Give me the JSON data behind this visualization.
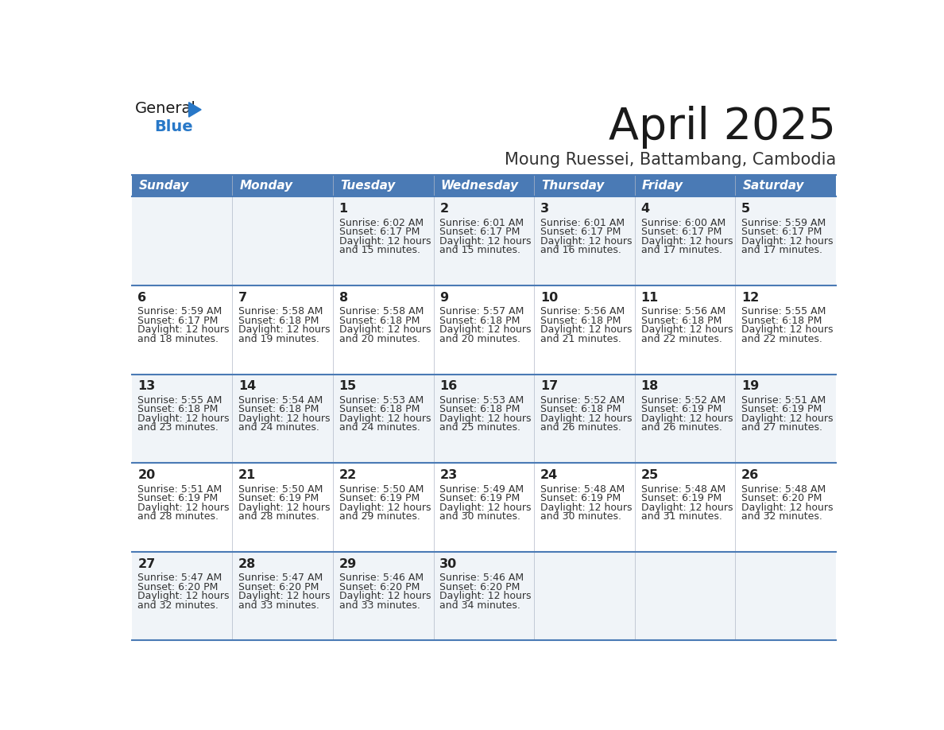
{
  "title": "April 2025",
  "subtitle": "Moung Ruessei, Battambang, Cambodia",
  "days_of_week": [
    "Sunday",
    "Monday",
    "Tuesday",
    "Wednesday",
    "Thursday",
    "Friday",
    "Saturday"
  ],
  "header_bg": "#4a7ab5",
  "header_text": "#ffffff",
  "cell_bg_even": "#f0f4f8",
  "cell_bg_odd": "#ffffff",
  "row_line_color": "#4a7ab5",
  "title_color": "#1a1a1a",
  "subtitle_color": "#333333",
  "day_number_color": "#222222",
  "cell_text_color": "#333333",
  "logo_general_color": "#1a1a1a",
  "logo_blue_color": "#2878c8",
  "calendar_data": [
    {
      "day": 1,
      "col": 2,
      "row": 0,
      "sunrise": "6:02 AM",
      "sunset": "6:17 PM",
      "daylight_h": "12 hours",
      "daylight_m": "and 15 minutes."
    },
    {
      "day": 2,
      "col": 3,
      "row": 0,
      "sunrise": "6:01 AM",
      "sunset": "6:17 PM",
      "daylight_h": "12 hours",
      "daylight_m": "and 15 minutes."
    },
    {
      "day": 3,
      "col": 4,
      "row": 0,
      "sunrise": "6:01 AM",
      "sunset": "6:17 PM",
      "daylight_h": "12 hours",
      "daylight_m": "and 16 minutes."
    },
    {
      "day": 4,
      "col": 5,
      "row": 0,
      "sunrise": "6:00 AM",
      "sunset": "6:17 PM",
      "daylight_h": "12 hours",
      "daylight_m": "and 17 minutes."
    },
    {
      "day": 5,
      "col": 6,
      "row": 0,
      "sunrise": "5:59 AM",
      "sunset": "6:17 PM",
      "daylight_h": "12 hours",
      "daylight_m": "and 17 minutes."
    },
    {
      "day": 6,
      "col": 0,
      "row": 1,
      "sunrise": "5:59 AM",
      "sunset": "6:17 PM",
      "daylight_h": "12 hours",
      "daylight_m": "and 18 minutes."
    },
    {
      "day": 7,
      "col": 1,
      "row": 1,
      "sunrise": "5:58 AM",
      "sunset": "6:18 PM",
      "daylight_h": "12 hours",
      "daylight_m": "and 19 minutes."
    },
    {
      "day": 8,
      "col": 2,
      "row": 1,
      "sunrise": "5:58 AM",
      "sunset": "6:18 PM",
      "daylight_h": "12 hours",
      "daylight_m": "and 20 minutes."
    },
    {
      "day": 9,
      "col": 3,
      "row": 1,
      "sunrise": "5:57 AM",
      "sunset": "6:18 PM",
      "daylight_h": "12 hours",
      "daylight_m": "and 20 minutes."
    },
    {
      "day": 10,
      "col": 4,
      "row": 1,
      "sunrise": "5:56 AM",
      "sunset": "6:18 PM",
      "daylight_h": "12 hours",
      "daylight_m": "and 21 minutes."
    },
    {
      "day": 11,
      "col": 5,
      "row": 1,
      "sunrise": "5:56 AM",
      "sunset": "6:18 PM",
      "daylight_h": "12 hours",
      "daylight_m": "and 22 minutes."
    },
    {
      "day": 12,
      "col": 6,
      "row": 1,
      "sunrise": "5:55 AM",
      "sunset": "6:18 PM",
      "daylight_h": "12 hours",
      "daylight_m": "and 22 minutes."
    },
    {
      "day": 13,
      "col": 0,
      "row": 2,
      "sunrise": "5:55 AM",
      "sunset": "6:18 PM",
      "daylight_h": "12 hours",
      "daylight_m": "and 23 minutes."
    },
    {
      "day": 14,
      "col": 1,
      "row": 2,
      "sunrise": "5:54 AM",
      "sunset": "6:18 PM",
      "daylight_h": "12 hours",
      "daylight_m": "and 24 minutes."
    },
    {
      "day": 15,
      "col": 2,
      "row": 2,
      "sunrise": "5:53 AM",
      "sunset": "6:18 PM",
      "daylight_h": "12 hours",
      "daylight_m": "and 24 minutes."
    },
    {
      "day": 16,
      "col": 3,
      "row": 2,
      "sunrise": "5:53 AM",
      "sunset": "6:18 PM",
      "daylight_h": "12 hours",
      "daylight_m": "and 25 minutes."
    },
    {
      "day": 17,
      "col": 4,
      "row": 2,
      "sunrise": "5:52 AM",
      "sunset": "6:18 PM",
      "daylight_h": "12 hours",
      "daylight_m": "and 26 minutes."
    },
    {
      "day": 18,
      "col": 5,
      "row": 2,
      "sunrise": "5:52 AM",
      "sunset": "6:19 PM",
      "daylight_h": "12 hours",
      "daylight_m": "and 26 minutes."
    },
    {
      "day": 19,
      "col": 6,
      "row": 2,
      "sunrise": "5:51 AM",
      "sunset": "6:19 PM",
      "daylight_h": "12 hours",
      "daylight_m": "and 27 minutes."
    },
    {
      "day": 20,
      "col": 0,
      "row": 3,
      "sunrise": "5:51 AM",
      "sunset": "6:19 PM",
      "daylight_h": "12 hours",
      "daylight_m": "and 28 minutes."
    },
    {
      "day": 21,
      "col": 1,
      "row": 3,
      "sunrise": "5:50 AM",
      "sunset": "6:19 PM",
      "daylight_h": "12 hours",
      "daylight_m": "and 28 minutes."
    },
    {
      "day": 22,
      "col": 2,
      "row": 3,
      "sunrise": "5:50 AM",
      "sunset": "6:19 PM",
      "daylight_h": "12 hours",
      "daylight_m": "and 29 minutes."
    },
    {
      "day": 23,
      "col": 3,
      "row": 3,
      "sunrise": "5:49 AM",
      "sunset": "6:19 PM",
      "daylight_h": "12 hours",
      "daylight_m": "and 30 minutes."
    },
    {
      "day": 24,
      "col": 4,
      "row": 3,
      "sunrise": "5:48 AM",
      "sunset": "6:19 PM",
      "daylight_h": "12 hours",
      "daylight_m": "and 30 minutes."
    },
    {
      "day": 25,
      "col": 5,
      "row": 3,
      "sunrise": "5:48 AM",
      "sunset": "6:19 PM",
      "daylight_h": "12 hours",
      "daylight_m": "and 31 minutes."
    },
    {
      "day": 26,
      "col": 6,
      "row": 3,
      "sunrise": "5:48 AM",
      "sunset": "6:20 PM",
      "daylight_h": "12 hours",
      "daylight_m": "and 32 minutes."
    },
    {
      "day": 27,
      "col": 0,
      "row": 4,
      "sunrise": "5:47 AM",
      "sunset": "6:20 PM",
      "daylight_h": "12 hours",
      "daylight_m": "and 32 minutes."
    },
    {
      "day": 28,
      "col": 1,
      "row": 4,
      "sunrise": "5:47 AM",
      "sunset": "6:20 PM",
      "daylight_h": "12 hours",
      "daylight_m": "and 33 minutes."
    },
    {
      "day": 29,
      "col": 2,
      "row": 4,
      "sunrise": "5:46 AM",
      "sunset": "6:20 PM",
      "daylight_h": "12 hours",
      "daylight_m": "and 33 minutes."
    },
    {
      "day": 30,
      "col": 3,
      "row": 4,
      "sunrise": "5:46 AM",
      "sunset": "6:20 PM",
      "daylight_h": "12 hours",
      "daylight_m": "and 34 minutes."
    }
  ]
}
